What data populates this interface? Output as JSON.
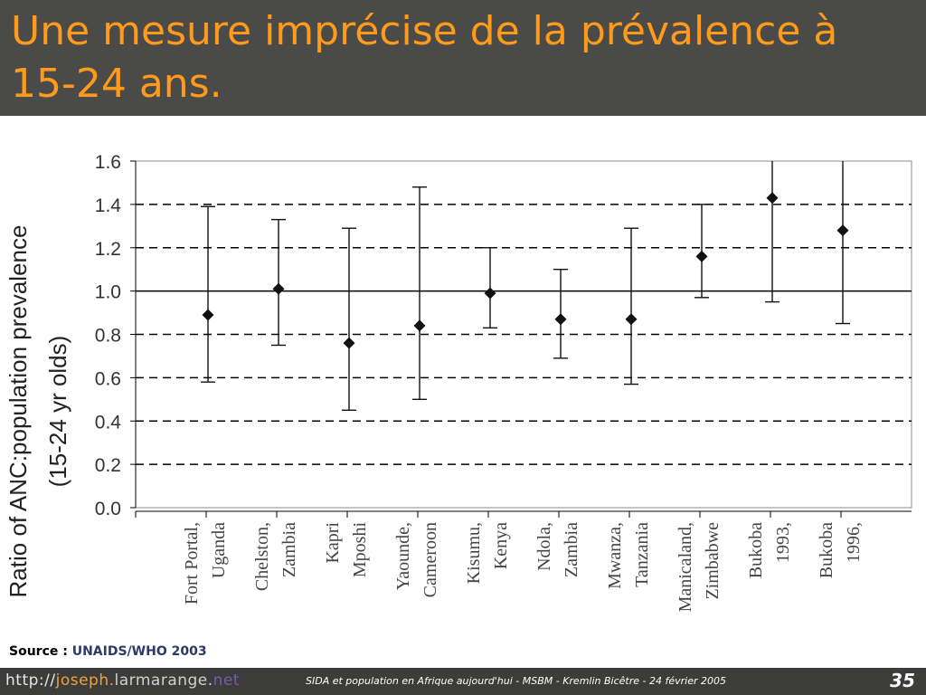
{
  "slide": {
    "title": "Une mesure imprécise de la prévalence à 15-24 ans.",
    "source_label": "Source : ",
    "source_value": "UNAIDS/WHO 2003",
    "footer_url": {
      "part1": "http://",
      "part2": "joseph.",
      "part3": "larmarange.",
      "part4": "net"
    },
    "footer_text": "SIDA et population en Afrique aujourd'hui - MSBM - Kremlin Bicêtre - 24 février 2005",
    "slide_number": "35"
  },
  "chart_data": {
    "type": "scatter",
    "ylabel_line1": "Ratio of ANC:population prevalence",
    "ylabel_line2": "(15-24 yr olds)",
    "ylim": [
      0,
      1.6
    ],
    "yticks": [
      0,
      0.2,
      0.4,
      0.6,
      0.8,
      1.0,
      1.2,
      1.4,
      1.6
    ],
    "ytick_labels": [
      "0.0",
      "0.2",
      "0.4",
      "0.6",
      "0.8",
      "1.0",
      "1.2",
      "1.4",
      "1.6"
    ],
    "reference_line": 1.0,
    "grid": "horizontal dashed",
    "categories": [
      [
        "Fort Portal,",
        "Uganda"
      ],
      [
        "Chelston,",
        "Zambia"
      ],
      [
        "Kapri",
        "Mposhi"
      ],
      [
        "Yaounde,",
        "Cameroon"
      ],
      [
        "Kisumu,",
        "Kenya"
      ],
      [
        "Ndola,",
        "Zambia"
      ],
      [
        "Mwanza,",
        "Tanzania"
      ],
      [
        "Manicaland,",
        "Zimbabwe"
      ],
      [
        "Bukoba",
        "1993,"
      ],
      [
        "Bukoba",
        "1996,"
      ]
    ],
    "series": [
      {
        "values": [
          0.89,
          1.01,
          0.76,
          0.84,
          0.99,
          0.87,
          0.87,
          1.16,
          1.43,
          1.28
        ],
        "lower": [
          0.58,
          0.75,
          0.45,
          0.5,
          0.83,
          0.69,
          0.57,
          0.97,
          0.95,
          0.85
        ],
        "upper": [
          1.39,
          1.33,
          1.29,
          1.48,
          1.2,
          1.1,
          1.29,
          1.4,
          1.63,
          1.63
        ]
      }
    ]
  }
}
